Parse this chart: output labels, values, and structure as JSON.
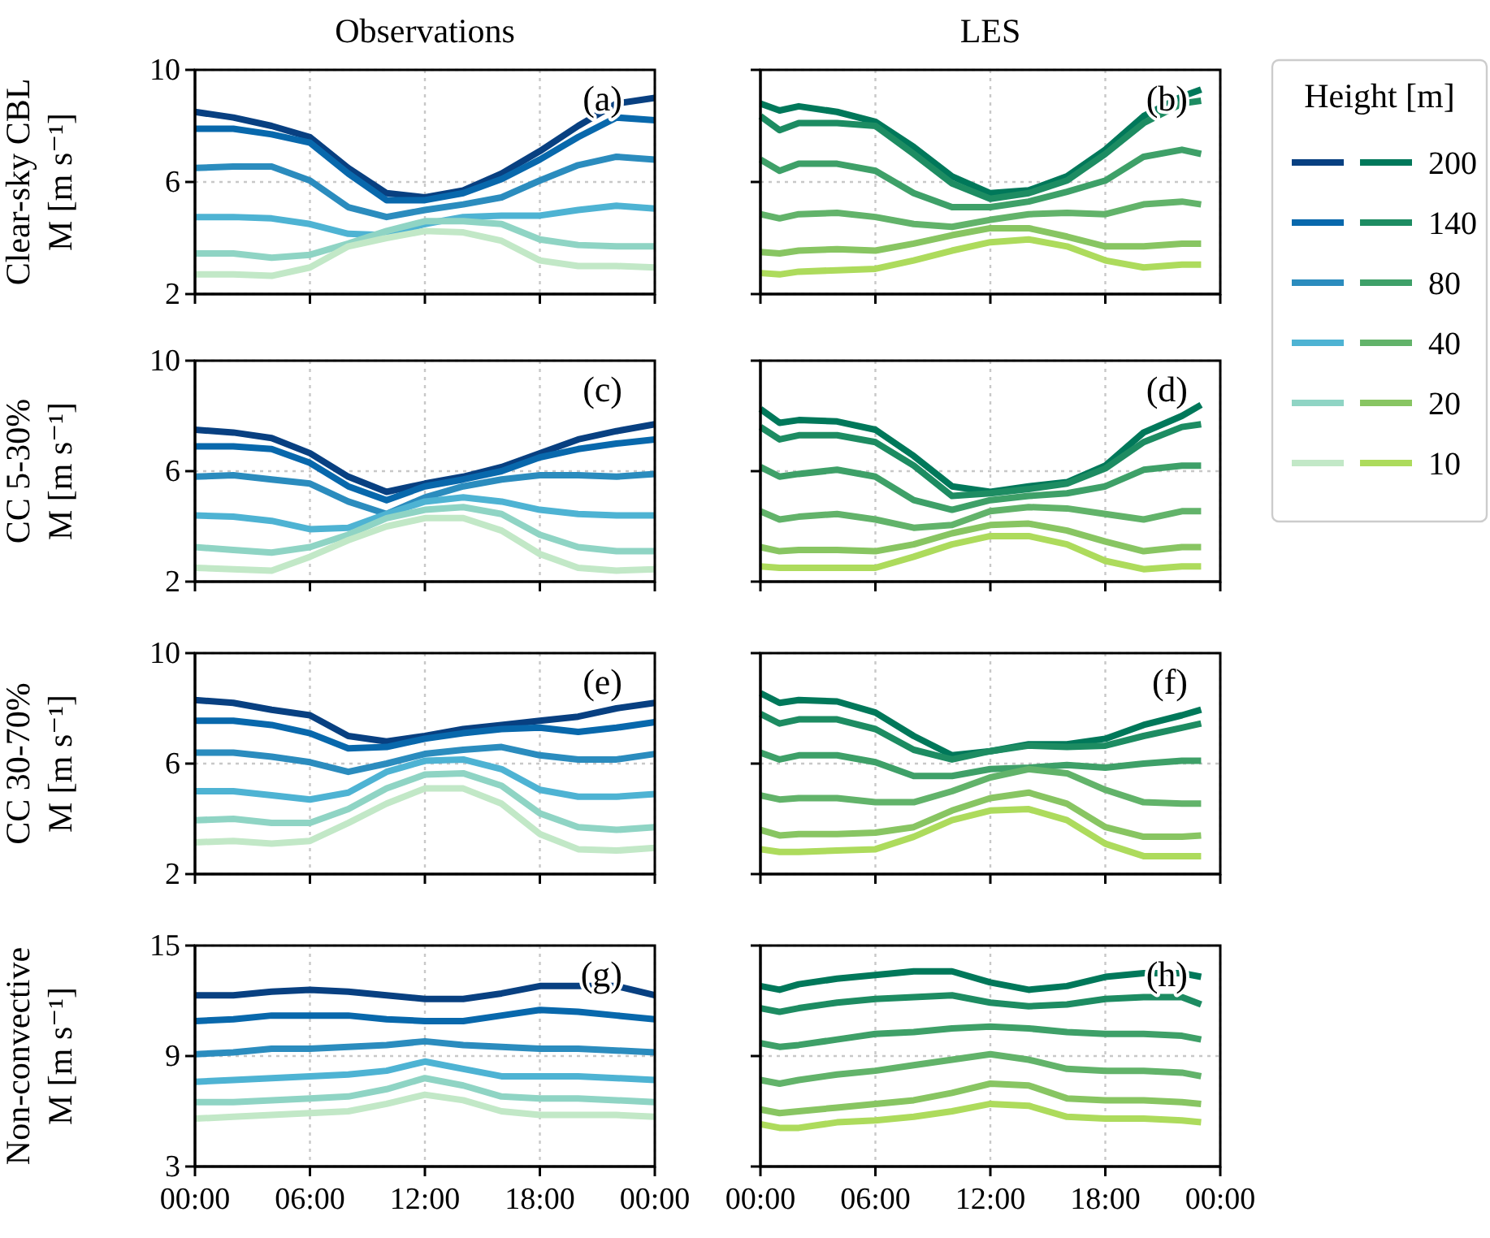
{
  "chart_data": [
    {
      "type": "line",
      "title": "Observations",
      "ylabel": "Clear-sky CBL\nM [m s⁻¹]",
      "annotations": [
        "(a)"
      ],
      "x": [
        0,
        2,
        4,
        6,
        8,
        10,
        12,
        14,
        16,
        18,
        20,
        22,
        24
      ],
      "xlim": [
        0,
        24
      ],
      "xticks": [
        {
          "value": 0,
          "label": null
        },
        {
          "value": 6,
          "label": null
        },
        {
          "value": 12,
          "label": null
        },
        {
          "value": 18,
          "label": null
        },
        {
          "value": 24,
          "label": null
        }
      ],
      "ylim": [
        2,
        10
      ],
      "yticks": [
        2,
        6,
        10
      ],
      "grid": true,
      "tick_labels": "y",
      "series": [
        {
          "color": "#084081",
          "values": [
            8.5,
            8.3,
            8.0,
            7.6,
            6.5,
            5.6,
            5.45,
            5.7,
            6.3,
            7.1,
            8.0,
            8.8,
            9.0
          ]
        },
        {
          "color": "#0868ac",
          "values": [
            7.9,
            7.9,
            7.7,
            7.4,
            6.3,
            5.35,
            5.35,
            5.6,
            6.1,
            6.8,
            7.6,
            8.3,
            8.2
          ]
        },
        {
          "color": "#2b8cbe",
          "values": [
            6.5,
            6.55,
            6.55,
            6.05,
            5.1,
            4.75,
            5.0,
            5.2,
            5.45,
            6.05,
            6.6,
            6.9,
            6.8
          ]
        },
        {
          "color": "#4eb3d3",
          "values": [
            4.75,
            4.75,
            4.7,
            4.5,
            4.15,
            4.1,
            4.5,
            4.75,
            4.8,
            4.8,
            5.0,
            5.15,
            5.05
          ]
        },
        {
          "color": "#8fd4c4",
          "values": [
            3.45,
            3.45,
            3.3,
            3.4,
            3.8,
            4.25,
            4.6,
            4.6,
            4.5,
            3.95,
            3.75,
            3.7,
            3.7
          ]
        },
        {
          "color": "#c2e8c7",
          "values": [
            2.7,
            2.7,
            2.65,
            2.95,
            3.7,
            4.0,
            4.25,
            4.2,
            3.9,
            3.2,
            3.0,
            3.0,
            2.95
          ]
        }
      ]
    },
    {
      "type": "line",
      "title": "LES",
      "legend": "right",
      "legend_title": "Height [m]",
      "annotations": [
        "(b)"
      ],
      "x": [
        0,
        1,
        2,
        4,
        6,
        8,
        10,
        12,
        14,
        16,
        18,
        20,
        22,
        23
      ],
      "xlim": [
        0,
        24
      ],
      "xticks": [
        {
          "value": 0,
          "label": null
        },
        {
          "value": 6,
          "label": null
        },
        {
          "value": 12,
          "label": null
        },
        {
          "value": 18,
          "label": null
        },
        {
          "value": 24,
          "label": null
        }
      ],
      "ylim": [
        2,
        10
      ],
      "yticks": [
        2,
        6,
        10
      ],
      "grid": true,
      "tick_labels": false,
      "series": [
        {
          "name": "200",
          "color": "#00785a",
          "values": [
            8.8,
            8.55,
            8.7,
            8.5,
            8.15,
            7.25,
            6.2,
            5.6,
            5.7,
            6.2,
            7.15,
            8.35,
            9.05,
            9.3
          ]
        },
        {
          "name": "140",
          "color": "#1d8c62",
          "values": [
            8.35,
            7.85,
            8.1,
            8.1,
            8.0,
            7.0,
            5.95,
            5.4,
            5.6,
            6.05,
            7.0,
            8.1,
            8.8,
            8.9
          ]
        },
        {
          "name": "80",
          "color": "#3ea068",
          "values": [
            6.8,
            6.4,
            6.65,
            6.65,
            6.4,
            5.6,
            5.1,
            5.1,
            5.3,
            5.65,
            6.05,
            6.9,
            7.15,
            7.0
          ]
        },
        {
          "name": "40",
          "color": "#62b36a",
          "values": [
            4.85,
            4.7,
            4.85,
            4.9,
            4.75,
            4.5,
            4.4,
            4.65,
            4.85,
            4.9,
            4.85,
            5.2,
            5.3,
            5.2
          ]
        },
        {
          "name": "20",
          "color": "#88c562",
          "values": [
            3.5,
            3.45,
            3.55,
            3.6,
            3.55,
            3.8,
            4.1,
            4.35,
            4.35,
            4.05,
            3.7,
            3.7,
            3.8,
            3.8
          ]
        },
        {
          "name": "10",
          "color": "#addb5c",
          "values": [
            2.75,
            2.7,
            2.8,
            2.85,
            2.9,
            3.2,
            3.55,
            3.85,
            3.95,
            3.7,
            3.2,
            2.95,
            3.05,
            3.05
          ]
        }
      ]
    },
    {
      "type": "line",
      "ylabel": "CC 5-30%\nM [m s⁻¹]",
      "annotations": [
        "(c)"
      ],
      "x": [
        0,
        2,
        4,
        6,
        8,
        10,
        12,
        14,
        16,
        18,
        20,
        22,
        24
      ],
      "xlim": [
        0,
        24
      ],
      "xticks": [
        {
          "value": 0,
          "label": null
        },
        {
          "value": 6,
          "label": null
        },
        {
          "value": 12,
          "label": null
        },
        {
          "value": 18,
          "label": null
        },
        {
          "value": 24,
          "label": null
        }
      ],
      "ylim": [
        2,
        10
      ],
      "yticks": [
        2,
        6,
        10
      ],
      "grid": true,
      "tick_labels": "y",
      "series": [
        {
          "color": "#084081",
          "values": [
            7.5,
            7.4,
            7.2,
            6.65,
            5.8,
            5.25,
            5.55,
            5.8,
            6.15,
            6.65,
            7.15,
            7.45,
            7.7
          ]
        },
        {
          "color": "#0868ac",
          "values": [
            6.9,
            6.9,
            6.8,
            6.3,
            5.45,
            4.95,
            5.45,
            5.7,
            6.0,
            6.5,
            6.8,
            7.0,
            7.15
          ]
        },
        {
          "color": "#2b8cbe",
          "values": [
            5.8,
            5.85,
            5.7,
            5.55,
            4.9,
            4.45,
            5.05,
            5.45,
            5.7,
            5.85,
            5.85,
            5.8,
            5.9
          ]
        },
        {
          "color": "#4eb3d3",
          "values": [
            4.4,
            4.35,
            4.2,
            3.9,
            3.95,
            4.45,
            4.9,
            5.05,
            4.9,
            4.6,
            4.45,
            4.4,
            4.4
          ]
        },
        {
          "color": "#8fd4c4",
          "values": [
            3.25,
            3.15,
            3.05,
            3.25,
            3.7,
            4.3,
            4.6,
            4.7,
            4.45,
            3.7,
            3.25,
            3.1,
            3.1
          ]
        },
        {
          "color": "#c2e8c7",
          "values": [
            2.5,
            2.45,
            2.4,
            2.9,
            3.5,
            4.0,
            4.3,
            4.3,
            3.85,
            3.0,
            2.5,
            2.4,
            2.45
          ]
        }
      ]
    },
    {
      "type": "line",
      "annotations": [
        "(d)"
      ],
      "x": [
        0,
        1,
        2,
        4,
        6,
        8,
        10,
        12,
        14,
        16,
        18,
        20,
        22,
        23
      ],
      "xlim": [
        0,
        24
      ],
      "xticks": [
        {
          "value": 0,
          "label": null
        },
        {
          "value": 6,
          "label": null
        },
        {
          "value": 12,
          "label": null
        },
        {
          "value": 18,
          "label": null
        },
        {
          "value": 24,
          "label": null
        }
      ],
      "ylim": [
        2,
        10
      ],
      "yticks": [
        2,
        6,
        10
      ],
      "grid": true,
      "tick_labels": false,
      "series": [
        {
          "color": "#00785a",
          "values": [
            8.25,
            7.75,
            7.85,
            7.8,
            7.5,
            6.55,
            5.45,
            5.25,
            5.45,
            5.6,
            6.2,
            7.4,
            8.0,
            8.4
          ]
        },
        {
          "color": "#1d8c62",
          "values": [
            7.6,
            7.15,
            7.3,
            7.3,
            7.05,
            6.2,
            5.1,
            5.2,
            5.35,
            5.55,
            6.1,
            7.05,
            7.6,
            7.7
          ]
        },
        {
          "color": "#3ea068",
          "values": [
            6.15,
            5.8,
            5.9,
            6.05,
            5.8,
            4.95,
            4.6,
            4.95,
            5.1,
            5.2,
            5.45,
            6.05,
            6.2,
            6.2
          ]
        },
        {
          "color": "#62b36a",
          "values": [
            4.55,
            4.25,
            4.35,
            4.45,
            4.25,
            3.95,
            4.05,
            4.55,
            4.7,
            4.65,
            4.45,
            4.25,
            4.55,
            4.55
          ]
        },
        {
          "color": "#88c562",
          "values": [
            3.25,
            3.1,
            3.15,
            3.15,
            3.1,
            3.35,
            3.75,
            4.05,
            4.1,
            3.85,
            3.45,
            3.1,
            3.25,
            3.25
          ]
        },
        {
          "color": "#addb5c",
          "values": [
            2.55,
            2.5,
            2.5,
            2.5,
            2.5,
            2.9,
            3.35,
            3.65,
            3.65,
            3.35,
            2.75,
            2.45,
            2.55,
            2.55
          ]
        }
      ]
    },
    {
      "type": "line",
      "ylabel": "CC 30-70%\nM [m s⁻¹]",
      "annotations": [
        "(e)"
      ],
      "x": [
        0,
        2,
        4,
        6,
        8,
        10,
        12,
        14,
        16,
        18,
        20,
        22,
        24
      ],
      "xlim": [
        0,
        24
      ],
      "xticks": [
        {
          "value": 0,
          "label": null
        },
        {
          "value": 6,
          "label": null
        },
        {
          "value": 12,
          "label": null
        },
        {
          "value": 18,
          "label": null
        },
        {
          "value": 24,
          "label": null
        }
      ],
      "ylim": [
        2,
        10
      ],
      "yticks": [
        2,
        6,
        10
      ],
      "grid": true,
      "tick_labels": "y",
      "series": [
        {
          "color": "#084081",
          "values": [
            8.3,
            8.2,
            7.95,
            7.75,
            7.0,
            6.8,
            7.0,
            7.25,
            7.4,
            7.55,
            7.7,
            8.0,
            8.2
          ]
        },
        {
          "color": "#0868ac",
          "values": [
            7.55,
            7.55,
            7.4,
            7.1,
            6.55,
            6.6,
            6.9,
            7.1,
            7.25,
            7.3,
            7.15,
            7.3,
            7.5
          ]
        },
        {
          "color": "#2b8cbe",
          "values": [
            6.4,
            6.4,
            6.25,
            6.05,
            5.7,
            6.0,
            6.35,
            6.5,
            6.6,
            6.3,
            6.15,
            6.15,
            6.35
          ]
        },
        {
          "color": "#4eb3d3",
          "values": [
            5.0,
            5.0,
            4.85,
            4.7,
            4.95,
            5.7,
            6.1,
            6.15,
            5.8,
            5.05,
            4.8,
            4.8,
            4.9
          ]
        },
        {
          "color": "#8fd4c4",
          "values": [
            3.95,
            4.0,
            3.85,
            3.85,
            4.35,
            5.1,
            5.6,
            5.65,
            5.2,
            4.2,
            3.7,
            3.6,
            3.7
          ]
        },
        {
          "color": "#c2e8c7",
          "values": [
            3.15,
            3.2,
            3.1,
            3.2,
            3.85,
            4.55,
            5.1,
            5.1,
            4.55,
            3.45,
            2.9,
            2.85,
            2.95
          ]
        }
      ]
    },
    {
      "type": "line",
      "annotations": [
        "(f)"
      ],
      "x": [
        0,
        1,
        2,
        4,
        6,
        8,
        10,
        12,
        14,
        16,
        18,
        20,
        22,
        23
      ],
      "xlim": [
        0,
        24
      ],
      "xticks": [
        {
          "value": 0,
          "label": null
        },
        {
          "value": 6,
          "label": null
        },
        {
          "value": 12,
          "label": null
        },
        {
          "value": 18,
          "label": null
        },
        {
          "value": 24,
          "label": null
        }
      ],
      "ylim": [
        2,
        10
      ],
      "yticks": [
        2,
        6,
        10
      ],
      "grid": true,
      "tick_labels": false,
      "series": [
        {
          "color": "#00785a",
          "values": [
            8.55,
            8.2,
            8.3,
            8.25,
            7.85,
            7.0,
            6.3,
            6.45,
            6.7,
            6.7,
            6.9,
            7.4,
            7.75,
            7.95
          ]
        },
        {
          "color": "#1d8c62",
          "values": [
            7.8,
            7.45,
            7.6,
            7.6,
            7.25,
            6.5,
            6.15,
            6.45,
            6.65,
            6.6,
            6.65,
            7.0,
            7.3,
            7.45
          ]
        },
        {
          "color": "#3ea068",
          "values": [
            6.4,
            6.15,
            6.3,
            6.3,
            6.05,
            5.55,
            5.55,
            5.8,
            5.85,
            5.95,
            5.85,
            6.0,
            6.1,
            6.1
          ]
        },
        {
          "color": "#62b36a",
          "values": [
            4.85,
            4.7,
            4.75,
            4.75,
            4.6,
            4.6,
            5.0,
            5.5,
            5.8,
            5.65,
            5.05,
            4.6,
            4.55,
            4.55
          ]
        },
        {
          "color": "#88c562",
          "values": [
            3.6,
            3.4,
            3.45,
            3.45,
            3.5,
            3.7,
            4.3,
            4.75,
            4.95,
            4.55,
            3.7,
            3.35,
            3.35,
            3.4
          ]
        },
        {
          "color": "#addb5c",
          "values": [
            2.9,
            2.8,
            2.8,
            2.85,
            2.9,
            3.35,
            3.95,
            4.3,
            4.35,
            3.95,
            3.1,
            2.65,
            2.65,
            2.65
          ]
        }
      ]
    },
    {
      "type": "line",
      "ylabel": "Non-convective\nM [m s⁻¹]",
      "annotations": [
        "(g)"
      ],
      "x": [
        0,
        2,
        4,
        6,
        8,
        10,
        12,
        14,
        16,
        18,
        20,
        22,
        24
      ],
      "xlim": [
        0,
        24
      ],
      "xticks": [
        {
          "value": 0,
          "label": "00:00"
        },
        {
          "value": 6,
          "label": "06:00"
        },
        {
          "value": 12,
          "label": "12:00"
        },
        {
          "value": 18,
          "label": "18:00"
        },
        {
          "value": 24,
          "label": "00:00"
        }
      ],
      "ylim": [
        3,
        15
      ],
      "yticks": [
        3,
        9,
        15
      ],
      "grid": true,
      "series": [
        {
          "color": "#084081",
          "values": [
            12.3,
            12.3,
            12.5,
            12.6,
            12.5,
            12.3,
            12.1,
            12.1,
            12.4,
            12.8,
            12.8,
            12.8,
            12.3
          ]
        },
        {
          "color": "#0868ac",
          "values": [
            10.9,
            11.0,
            11.2,
            11.2,
            11.2,
            11.0,
            10.9,
            10.9,
            11.2,
            11.5,
            11.4,
            11.2,
            11.0
          ]
        },
        {
          "color": "#2b8cbe",
          "values": [
            9.1,
            9.2,
            9.4,
            9.4,
            9.5,
            9.6,
            9.8,
            9.6,
            9.5,
            9.4,
            9.4,
            9.3,
            9.2
          ]
        },
        {
          "color": "#4eb3d3",
          "values": [
            7.6,
            7.7,
            7.8,
            7.9,
            8.0,
            8.2,
            8.7,
            8.3,
            7.9,
            7.9,
            7.9,
            7.8,
            7.7
          ]
        },
        {
          "color": "#8fd4c4",
          "values": [
            6.5,
            6.5,
            6.6,
            6.7,
            6.8,
            7.2,
            7.8,
            7.4,
            6.8,
            6.7,
            6.7,
            6.6,
            6.5
          ]
        },
        {
          "color": "#c2e8c7",
          "values": [
            5.6,
            5.7,
            5.8,
            5.9,
            6.0,
            6.4,
            6.9,
            6.6,
            6.0,
            5.8,
            5.8,
            5.8,
            5.7
          ]
        }
      ]
    },
    {
      "type": "line",
      "annotations": [
        "(h)"
      ],
      "x": [
        0,
        1,
        2,
        4,
        6,
        8,
        10,
        12,
        14,
        16,
        18,
        20,
        22,
        23
      ],
      "xlim": [
        0,
        24
      ],
      "xticks": [
        {
          "value": 0,
          "label": "00:00"
        },
        {
          "value": 6,
          "label": "06:00"
        },
        {
          "value": 12,
          "label": "12:00"
        },
        {
          "value": 18,
          "label": "18:00"
        },
        {
          "value": 24,
          "label": "00:00"
        }
      ],
      "ylim": [
        3,
        15
      ],
      "yticks": [
        3,
        9,
        15
      ],
      "grid": true,
      "tick_labels": "x",
      "series": [
        {
          "color": "#00785a",
          "values": [
            12.8,
            12.6,
            12.9,
            13.2,
            13.4,
            13.6,
            13.6,
            13.0,
            12.6,
            12.8,
            13.3,
            13.5,
            13.5,
            13.3
          ]
        },
        {
          "color": "#1d8c62",
          "values": [
            11.6,
            11.4,
            11.6,
            11.9,
            12.1,
            12.2,
            12.3,
            11.9,
            11.7,
            11.8,
            12.1,
            12.2,
            12.2,
            11.8
          ]
        },
        {
          "color": "#3ea068",
          "values": [
            9.7,
            9.5,
            9.6,
            9.9,
            10.2,
            10.3,
            10.5,
            10.6,
            10.5,
            10.3,
            10.2,
            10.2,
            10.1,
            9.9
          ]
        },
        {
          "color": "#62b36a",
          "values": [
            7.7,
            7.5,
            7.7,
            8.0,
            8.2,
            8.5,
            8.8,
            9.1,
            8.8,
            8.3,
            8.2,
            8.2,
            8.1,
            7.9
          ]
        },
        {
          "color": "#88c562",
          "values": [
            6.1,
            5.9,
            6.0,
            6.2,
            6.4,
            6.6,
            7.0,
            7.5,
            7.4,
            6.7,
            6.6,
            6.6,
            6.5,
            6.4
          ]
        },
        {
          "color": "#addb5c",
          "values": [
            5.3,
            5.1,
            5.1,
            5.4,
            5.5,
            5.7,
            6.0,
            6.4,
            6.3,
            5.7,
            5.6,
            5.6,
            5.5,
            5.4
          ]
        }
      ]
    }
  ]
}
